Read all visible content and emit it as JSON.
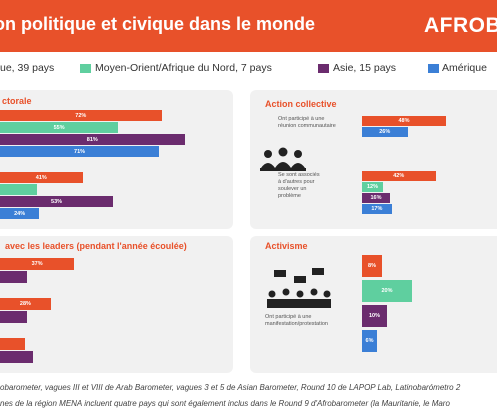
{
  "header": {
    "title": "on politique et civique dans le monde",
    "logo": "AFROBA"
  },
  "legend": [
    {
      "name": "ue, 39 pays",
      "color": "#e8512a"
    },
    {
      "name": "Moyen-Orient/Afrique du Nord, 7 pays",
      "color": "#5fcf9f"
    },
    {
      "name": "Asie, 15 pays",
      "color": "#6b2c6e"
    },
    {
      "name": "Amérique",
      "color": "#3b7fd6"
    }
  ],
  "chart_data": [
    {
      "type": "bar",
      "title": "ctorale",
      "categories": [
        null,
        null
      ],
      "series": [
        {
          "color": "#e8512a",
          "values": [
            72,
            41
          ],
          "value_labels": [
            "72%",
            "41%"
          ]
        },
        {
          "color": "#5fcf9f",
          "values": [
            55,
            23
          ],
          "value_labels": [
            "55%",
            null
          ]
        },
        {
          "color": "#6b2c6e",
          "values": [
            81,
            53
          ],
          "value_labels": [
            "81%",
            "53%"
          ]
        },
        {
          "color": "#3b7fd6",
          "values": [
            71,
            24
          ],
          "value_labels": [
            "71%",
            "24%"
          ]
        }
      ]
    },
    {
      "type": "bar",
      "title": "Action collective",
      "categories": [
        "Ont participé à une réunion communautaire",
        "Se sont associés à d'autres pour soulever un problème"
      ],
      "series": [
        {
          "color": "#e8512a",
          "values": [
            48,
            42
          ],
          "value_labels": [
            "48%",
            "42%"
          ]
        },
        {
          "color": "#5fcf9f",
          "values": [
            null,
            12
          ],
          "value_labels": [
            null,
            "12%"
          ]
        },
        {
          "color": "#6b2c6e",
          "values": [
            null,
            16
          ],
          "value_labels": [
            null,
            "16%"
          ]
        },
        {
          "color": "#3b7fd6",
          "values": [
            26,
            17
          ],
          "value_labels": [
            "26%",
            "17%"
          ]
        }
      ]
    },
    {
      "type": "bar",
      "title": "avec les leaders (pendant l'année écoulée)",
      "categories": [
        null,
        null,
        null
      ],
      "series": [
        {
          "color": "#e8512a",
          "values": [
            37,
            28,
            18
          ],
          "value_labels": [
            "37%",
            "28%",
            null
          ]
        },
        {
          "color": "#6b2c6e",
          "values": [
            19,
            19,
            21
          ],
          "value_labels": [
            null,
            null,
            null
          ]
        }
      ]
    },
    {
      "type": "bar",
      "title": "Activisme",
      "categories": [
        "Ont participé à une manifestation/protestation"
      ],
      "series": [
        {
          "color": "#e8512a",
          "values": [
            8
          ],
          "value_labels": [
            "8%"
          ]
        },
        {
          "color": "#5fcf9f",
          "values": [
            20
          ],
          "value_labels": [
            "20%"
          ]
        },
        {
          "color": "#6b2c6e",
          "values": [
            10
          ],
          "value_labels": [
            "10%"
          ]
        },
        {
          "color": "#3b7fd6",
          "values": [
            6
          ],
          "value_labels": [
            "6%"
          ]
        }
      ]
    }
  ],
  "footer": [
    "obarometer, vagues III et VIII de Arab Barometer, vagues 3 et 5 de Asian Barometer, Round 10 de LAPOP Lab, Latinobarómetro 2",
    "nes de la région MENA incluent quatre pays qui sont également inclus dans le Round 9 d'Afrobarometer (la Mauritanie, le Maro"
  ]
}
